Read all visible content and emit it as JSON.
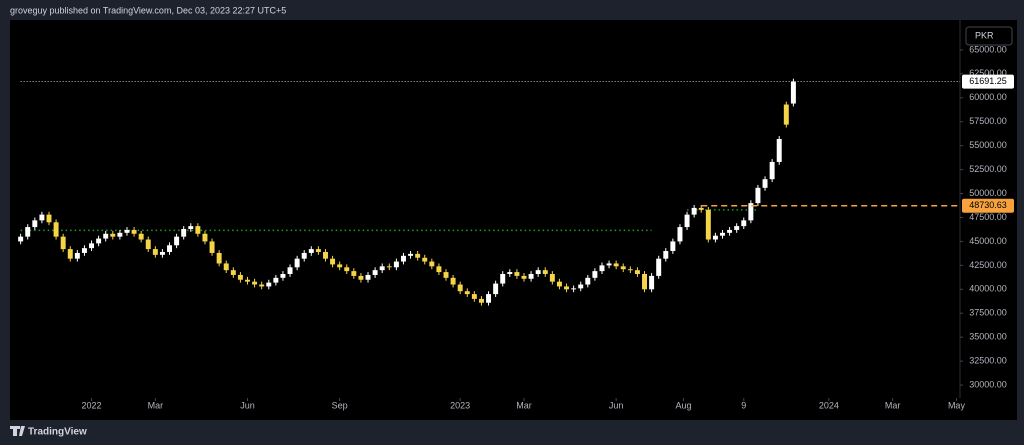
{
  "header": "groveguy published on TradingView.com, Dec 03, 2023 22:27 UTC+5",
  "footer": "TradingView",
  "chart_data": {
    "type": "candlestick",
    "currency_label": "PKR",
    "up_color": "#ffffff",
    "down_color": "#f5d547",
    "open": [
      45000,
      45500,
      46500,
      47200,
      47800,
      47000,
      45500,
      44200,
      43200,
      43800,
      44300,
      44800,
      45300,
      45800,
      45500,
      45900,
      46200,
      45800,
      45200,
      44200,
      43600,
      43900,
      44600,
      45500,
      46300,
      46600,
      45800,
      45000,
      43800,
      42700,
      42000,
      41500,
      41000,
      40800,
      40500,
      40300,
      40700,
      41200,
      41600,
      42300,
      43200,
      43800,
      44200,
      43900,
      43200,
      42600,
      42300,
      41900,
      41400,
      41000,
      41500,
      42000,
      42400,
      42300,
      42900,
      43500,
      43700,
      43300,
      42900,
      42400,
      41800,
      41200,
      40500,
      39800,
      39500,
      39000,
      38600,
      39500,
      40600,
      41600,
      41800,
      41400,
      41100,
      41600,
      42000,
      41600,
      40800,
      40300,
      40000,
      40100,
      40500,
      41200,
      41900,
      42500,
      42700,
      42400,
      42100,
      42000,
      41600,
      40000,
      41400,
      43200,
      44000,
      45000,
      46500,
      47800,
      48500,
      48300,
      45200,
      45600,
      45900,
      46200,
      46600,
      47200,
      49000,
      50600,
      51500,
      53300,
      59300,
      59400
    ],
    "high": [
      45800,
      46800,
      47500,
      48100,
      48100,
      47300,
      45800,
      44500,
      44100,
      44600,
      45100,
      45600,
      46100,
      46100,
      46200,
      46500,
      46500,
      46100,
      45500,
      44500,
      44200,
      44900,
      45800,
      46600,
      46900,
      46900,
      46100,
      45300,
      44100,
      43000,
      42300,
      41800,
      41300,
      41100,
      40800,
      41000,
      41500,
      41900,
      42600,
      43500,
      44100,
      44500,
      44500,
      44200,
      43500,
      42900,
      42600,
      42200,
      41700,
      41800,
      42300,
      42700,
      42700,
      43200,
      43800,
      44000,
      44000,
      43600,
      43200,
      42700,
      42100,
      41500,
      40800,
      40100,
      39800,
      39300,
      39800,
      40900,
      41900,
      42100,
      42100,
      41700,
      41900,
      42300,
      42300,
      41900,
      41100,
      40600,
      40400,
      40800,
      41500,
      42200,
      42800,
      43000,
      43000,
      42700,
      42400,
      42300,
      41900,
      41700,
      43500,
      44300,
      45300,
      46800,
      48100,
      48800,
      48800,
      48600,
      45900,
      46200,
      46500,
      46900,
      47500,
      49300,
      50900,
      51800,
      53600,
      56000,
      59600,
      62000
    ],
    "low": [
      44700,
      45200,
      46200,
      46900,
      46700,
      45200,
      43900,
      42900,
      42900,
      43500,
      44000,
      44500,
      45000,
      45200,
      45200,
      45600,
      45500,
      44900,
      43900,
      43300,
      43300,
      43600,
      44300,
      45200,
      46000,
      45500,
      44700,
      43500,
      42400,
      41700,
      41200,
      40700,
      40500,
      40200,
      40000,
      40000,
      40400,
      40900,
      41300,
      42000,
      42900,
      43500,
      43600,
      42900,
      42300,
      42000,
      41600,
      41100,
      40700,
      40700,
      41200,
      41700,
      42000,
      42000,
      42600,
      43200,
      43000,
      42600,
      42100,
      41500,
      40900,
      40200,
      39500,
      39200,
      38700,
      38300,
      38300,
      39200,
      40300,
      41300,
      41100,
      40800,
      40800,
      41300,
      41300,
      40500,
      40000,
      39700,
      39700,
      39800,
      40200,
      40900,
      41600,
      42200,
      42100,
      41800,
      41700,
      41300,
      39700,
      39700,
      41100,
      42900,
      43700,
      44700,
      46200,
      47500,
      48000,
      44900,
      44900,
      45300,
      45600,
      45900,
      46300,
      46900,
      48700,
      50300,
      51200,
      53000,
      56900,
      59100
    ],
    "close": [
      45500,
      46500,
      47200,
      47800,
      47000,
      45500,
      44200,
      43200,
      43800,
      44300,
      44800,
      45300,
      45800,
      45500,
      45900,
      46200,
      45800,
      45200,
      44200,
      43600,
      43900,
      44600,
      45500,
      46300,
      46600,
      45800,
      45000,
      43800,
      42700,
      42000,
      41500,
      41000,
      40800,
      40500,
      40300,
      40700,
      41200,
      41600,
      42300,
      43200,
      43800,
      44200,
      43900,
      43200,
      42600,
      42300,
      41900,
      41400,
      41000,
      41500,
      42000,
      42400,
      42300,
      42900,
      43500,
      43700,
      43300,
      42900,
      42400,
      41800,
      41200,
      40500,
      39800,
      39500,
      39000,
      38600,
      39500,
      40600,
      41600,
      41800,
      41400,
      41100,
      41600,
      42000,
      41600,
      40800,
      40300,
      40000,
      40100,
      40500,
      41200,
      41900,
      42500,
      42700,
      42400,
      42100,
      42000,
      41600,
      40000,
      41400,
      43200,
      44000,
      45000,
      46500,
      47800,
      48500,
      48300,
      45200,
      45600,
      45900,
      46200,
      46600,
      47200,
      49000,
      50600,
      51500,
      53300,
      55700,
      57200,
      61691.25
    ],
    "xlim": [
      -1.5,
      132.5
    ],
    "xticks": [
      {
        "value": 10,
        "label": "2022"
      },
      {
        "value": 19,
        "label": "Mar"
      },
      {
        "value": 32,
        "label": "Jun"
      },
      {
        "value": 45,
        "label": "Sep"
      },
      {
        "value": 62,
        "label": "2023"
      },
      {
        "value": 71,
        "label": "Mar"
      },
      {
        "value": 84,
        "label": "Jun"
      },
      {
        "value": 93.5,
        "label": "Aug"
      },
      {
        "value": 102,
        "label": "9"
      },
      {
        "value": 114,
        "label": "2024"
      },
      {
        "value": 123,
        "label": "Mar"
      },
      {
        "value": 132,
        "label": "May"
      }
    ],
    "ylim": [
      28650,
      68125
    ],
    "yticks": [
      {
        "value": 30000,
        "label": "30000.00"
      },
      {
        "value": 32500,
        "label": "32500.00"
      },
      {
        "value": 35000,
        "label": "35000.00"
      },
      {
        "value": 37500,
        "label": "37500.00"
      },
      {
        "value": 40000,
        "label": "40000.00"
      },
      {
        "value": 42500,
        "label": "42500.00"
      },
      {
        "value": 45000,
        "label": "45000.00"
      },
      {
        "value": 47500,
        "label": "47500.00"
      },
      {
        "value": 50000,
        "label": "50000.00"
      },
      {
        "value": 52500,
        "label": "52500.00"
      },
      {
        "value": 55000,
        "label": "55000.00"
      },
      {
        "value": 57500,
        "label": "57500.00"
      },
      {
        "value": 60000,
        "label": "60000.00"
      },
      {
        "value": 62500,
        "label": "62500.00"
      },
      {
        "value": 65000,
        "label": "65000.00"
      }
    ],
    "price_lines": [
      {
        "value": 61691.25,
        "color": "#ffffff",
        "style": "dotted",
        "from": 0,
        "label_bg": "#ffffff"
      },
      {
        "value": 48730.63,
        "color": "#f7a23c",
        "style": "dashed",
        "from": 96,
        "label_bg": "#f7a23c"
      }
    ],
    "levels": [
      {
        "value": 46150,
        "color": "#1fa01f",
        "from": 0,
        "to": 89
      },
      {
        "value": 48300,
        "color": "#1fa01f",
        "from": 94,
        "to": 104
      }
    ]
  }
}
